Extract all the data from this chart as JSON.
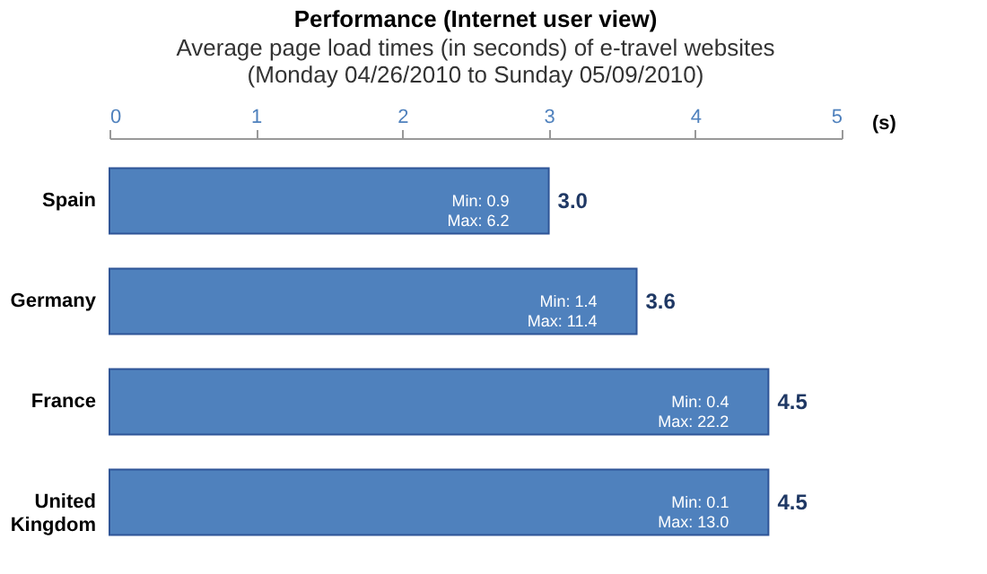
{
  "chart_data": {
    "type": "bar",
    "orientation": "horizontal",
    "title": "Performance (Internet user view)",
    "subtitle": "Average page load times (in seconds) of e-travel websites\n(Monday 04/26/2010 to Sunday 05/09/2010)",
    "xlabel": "(s)",
    "categories": [
      "Spain",
      "Germany",
      "France",
      "United Kingdom"
    ],
    "values": [
      3.0,
      3.6,
      4.5,
      4.5
    ],
    "color": "#4f81bd",
    "xlim": [
      0,
      5
    ],
    "xticks": [
      0,
      1,
      2,
      3,
      4,
      5
    ],
    "value_labels": [
      "3.0",
      "3.6",
      "4.5",
      "4.5"
    ],
    "grid": false,
    "annotations": [
      {
        "text": "Min: 0.9\nMax: 6.2",
        "x": 3.0,
        "y": "Spain"
      },
      {
        "text": "Min: 1.4\nMax: 11.4",
        "x": 3.6,
        "y": "Germany"
      },
      {
        "text": "Min: 0.4\nMax: 22.2",
        "x": 4.5,
        "y": "France"
      },
      {
        "text": "Min: 0.1\nMax: 13.0",
        "x": 4.5,
        "y": "United Kingdom"
      }
    ]
  }
}
